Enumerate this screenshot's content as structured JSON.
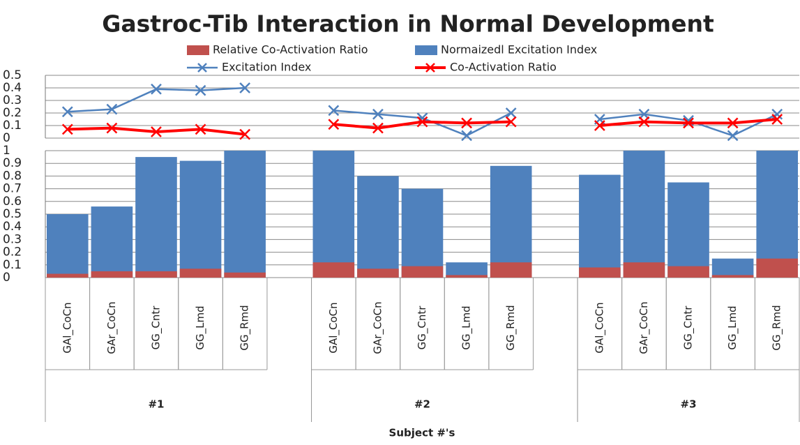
{
  "chart_data": [
    {
      "type": "line",
      "title": "Gastroc-Tib Interaction in Normal Development",
      "ylim": [
        0,
        0.5
      ],
      "yticks": [
        0,
        0.1,
        0.2,
        0.3,
        0.4,
        0.5
      ],
      "grid": true,
      "series": [
        {
          "name": "Excitation Index",
          "color": "#4f81bd",
          "marker": "x",
          "values": [
            0.21,
            0.23,
            0.39,
            0.38,
            0.4,
            null,
            0.22,
            0.19,
            0.16,
            0.02,
            0.2,
            null,
            0.15,
            0.19,
            0.14,
            0.02,
            0.19
          ]
        },
        {
          "name": "Co-Activation Ratio",
          "color": "#ff0000",
          "marker": "x",
          "values": [
            0.07,
            0.08,
            0.05,
            0.07,
            0.03,
            null,
            0.11,
            0.08,
            0.13,
            0.12,
            0.13,
            null,
            0.1,
            0.13,
            0.12,
            0.12,
            0.15
          ]
        }
      ]
    },
    {
      "type": "bar",
      "xlabel": "Subject #'s",
      "categories": [
        "GAl_CoCn",
        "GAr_CoCn",
        "GG_Cntr",
        "GG_Lmd",
        "GG_Rmd",
        null,
        "GAl_CoCn",
        "GAr_CoCn",
        "GG_Cntr",
        "GG_Lmd",
        "GG_Rmd",
        null,
        "GAl_CoCn",
        "GAr_CoCn",
        "GG_Cntr",
        "GG_Lmd",
        "GG_Rmd"
      ],
      "groups": [
        "#1",
        "#2",
        "#3"
      ],
      "ylim": [
        0,
        1
      ],
      "yticks": [
        0,
        0.1,
        0.2,
        0.3,
        0.4,
        0.5,
        0.6,
        0.7,
        0.8,
        0.9,
        1
      ],
      "grid": true,
      "series": [
        {
          "name": "Relative Co-Activation Ratio",
          "color": "#c0504d",
          "values": [
            0.03,
            0.05,
            0.05,
            0.07,
            0.04,
            null,
            0.12,
            0.07,
            0.09,
            0.02,
            0.12,
            null,
            0.08,
            0.12,
            0.09,
            0.02,
            0.15
          ]
        },
        {
          "name": "Normaizedl Excitation Index",
          "color": "#4f81bd",
          "values": [
            0.5,
            0.56,
            0.95,
            0.92,
            1.0,
            null,
            1.0,
            0.8,
            0.7,
            0.12,
            0.88,
            null,
            0.81,
            1.0,
            0.75,
            0.15,
            1.0
          ]
        }
      ]
    }
  ]
}
